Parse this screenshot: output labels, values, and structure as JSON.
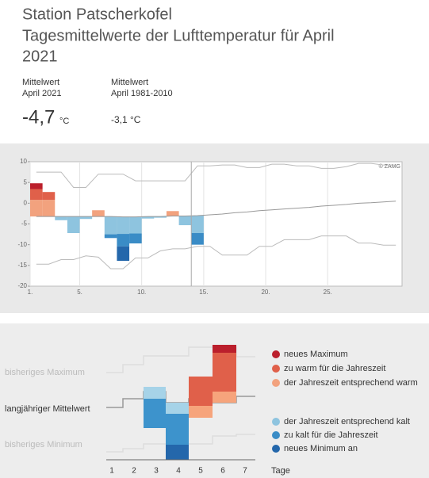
{
  "header": {
    "title_lines": [
      "Station Patscherkofel",
      "Tagesmittelwerte der Lufttemperatur für April",
      "2021"
    ]
  },
  "stats": [
    {
      "label_lines": [
        "Mittelwert",
        "April 2021"
      ],
      "value": "-4,7",
      "unit": "°C"
    },
    {
      "label_lines": [
        "Mittelwert",
        "April 1981-2010"
      ],
      "value": "-3,1 °C"
    }
  ],
  "chart_data": {
    "type": "bar",
    "credit": "© ZAMG",
    "x": [
      1,
      2,
      3,
      4,
      5,
      6,
      7,
      8,
      9,
      10,
      11,
      12,
      13,
      14,
      15,
      16,
      17,
      18,
      19,
      20,
      21,
      22,
      23,
      24,
      25,
      26,
      27,
      28,
      29,
      30
    ],
    "xlim": [
      1,
      31
    ],
    "xticks": [
      {
        "value": 1,
        "label": "1."
      },
      {
        "value": 5,
        "label": "5."
      },
      {
        "value": 10,
        "label": "10."
      },
      {
        "value": 15,
        "label": "15."
      },
      {
        "value": 20,
        "label": "20."
      },
      {
        "value": 25,
        "label": "25."
      }
    ],
    "ylim": [
      -20,
      10
    ],
    "yticks": [
      10,
      5,
      0,
      -5,
      -10,
      -15,
      -20
    ],
    "current_day": 14,
    "mean": [
      -3.2,
      -3.2,
      -3.2,
      -3.2,
      -3.2,
      -3.2,
      -3.2,
      -3.3,
      -3.3,
      -3.2,
      -3.2,
      -3.1,
      -3.1,
      -3.0,
      -2.8,
      -2.6,
      -2.3,
      -2.1,
      -1.8,
      -1.6,
      -1.4,
      -1.2,
      -1.0,
      -0.7,
      -0.5,
      -0.3,
      0,
      0.1,
      0.3,
      0.5
    ],
    "max": [
      7.5,
      7.5,
      7.5,
      3.8,
      3.8,
      7.0,
      7.0,
      7.0,
      5.4,
      5.4,
      5.4,
      5.4,
      5.4,
      9.0,
      9.0,
      9.2,
      9.2,
      8.6,
      8.6,
      9.4,
      9.4,
      9.0,
      9.0,
      8.4,
      8.4,
      8.8,
      9.6,
      9.6,
      9.2,
      9.2
    ],
    "min": [
      -14.7,
      -14.7,
      -13.6,
      -13.6,
      -12.7,
      -13.0,
      -15.8,
      -15.8,
      -13.2,
      -13.2,
      -11.5,
      -11.0,
      -11.0,
      -10.4,
      -10.4,
      -12.5,
      -12.5,
      -12.5,
      -10.4,
      -10.4,
      -8.8,
      -8.8,
      -8.8,
      -7.9,
      -7.9,
      -7.9,
      -9.6,
      -9.6,
      -10.1,
      -10.1
    ],
    "series": [
      {
        "name": "der Jahreszeit entsprechend warm",
        "color": "#f2a27e",
        "values": [
          4.0,
          4.0,
          null,
          null,
          null,
          1.5,
          null,
          null,
          null,
          null,
          null,
          1.2,
          null,
          null,
          null,
          null,
          null,
          null,
          null,
          null,
          null,
          null,
          null,
          null,
          null,
          null,
          null,
          null,
          null,
          null
        ]
      },
      {
        "name": "zu warm für die Jahreszeit",
        "color": "#e0604a",
        "values": [
          2.6,
          1.9,
          null,
          null,
          null,
          null,
          null,
          null,
          null,
          null,
          null,
          null,
          null,
          null,
          null,
          null,
          null,
          null,
          null,
          null,
          null,
          null,
          null,
          null,
          null,
          null,
          null,
          null,
          null,
          null
        ]
      },
      {
        "name": "neues Maximum",
        "color": "#bb1f2c",
        "values": [
          1.4,
          null,
          null,
          null,
          null,
          null,
          null,
          null,
          null,
          null,
          null,
          null,
          null,
          null,
          null,
          null,
          null,
          null,
          null,
          null,
          null,
          null,
          null,
          null,
          null,
          null,
          null,
          null,
          null,
          null
        ]
      },
      {
        "name": "der Jahreszeit entsprechend kalt",
        "color": "#8ec4df",
        "values": [
          null,
          null,
          -0.9,
          -4.0,
          -0.6,
          null,
          -4.3,
          -4.1,
          -4.0,
          -0.5,
          -0.3,
          null,
          -2.2,
          -4.2,
          null,
          null,
          null,
          null,
          null,
          null,
          null,
          null,
          null,
          null,
          null,
          null,
          null,
          null,
          null,
          null
        ]
      },
      {
        "name": "zu kalt für die Jahreszeit",
        "color": "#3a8cc6",
        "values": [
          null,
          null,
          null,
          null,
          null,
          null,
          -0.9,
          -3.0,
          -2.4,
          null,
          null,
          null,
          null,
          -2.8,
          null,
          null,
          null,
          null,
          null,
          null,
          null,
          null,
          null,
          null,
          null,
          null,
          null,
          null,
          null,
          null
        ]
      },
      {
        "name": "neues Minimum an",
        "color": "#2467ab",
        "values": [
          null,
          null,
          null,
          null,
          null,
          null,
          null,
          -3.5,
          null,
          null,
          null,
          null,
          null,
          null,
          null,
          null,
          null,
          null,
          null,
          null,
          null,
          null,
          null,
          null,
          null,
          null,
          null,
          null,
          null,
          null
        ]
      }
    ]
  },
  "schematic": {
    "labels": [
      "bisheriges Maximum",
      "langjähriger Mittelwert",
      "bisheriges Minimum"
    ],
    "days": [
      "1",
      "2",
      "3",
      "4",
      "5",
      "6",
      "7"
    ],
    "axis_label": "Tage"
  }
}
